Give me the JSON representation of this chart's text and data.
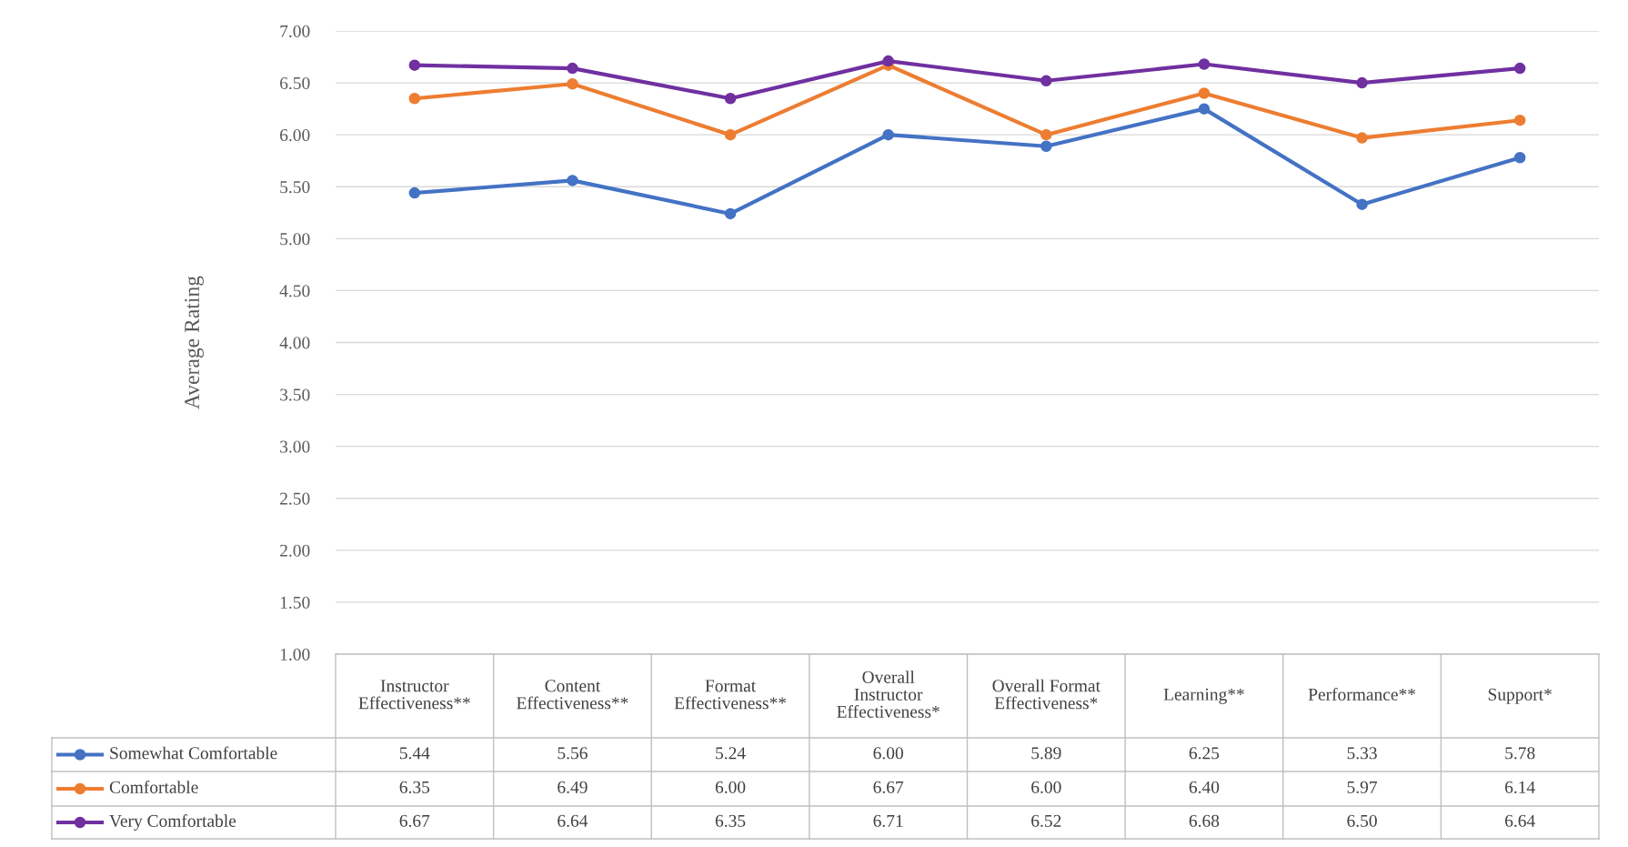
{
  "chart_data": {
    "type": "line",
    "ylabel": "Average Rating",
    "categories": [
      "Instructor\nEffectiveness**",
      "Content\nEffectiveness**",
      "Format\nEffectiveness**",
      "Overall\nInstructor\nEffectiveness*",
      "Overall Format\nEffectiveness*",
      "Learning**",
      "Performance**",
      "Support*"
    ],
    "series": [
      {
        "name": "Somewhat Comfortable",
        "color": "#4472c4",
        "values": [
          5.44,
          5.56,
          5.24,
          6.0,
          5.89,
          6.25,
          5.33,
          5.78
        ],
        "value_labels": [
          "5.44",
          "5.56",
          "5.24",
          "6.00",
          "5.89",
          "6.25",
          "5.33",
          "5.78"
        ]
      },
      {
        "name": "Comfortable",
        "color": "#ed7d31",
        "values": [
          6.35,
          6.49,
          6.0,
          6.67,
          6.0,
          6.4,
          5.97,
          6.14
        ],
        "value_labels": [
          "6.35",
          "6.49",
          "6.00",
          "6.67",
          "6.00",
          "6.40",
          "5.97",
          "6.14"
        ]
      },
      {
        "name": "Very Comfortable",
        "color": "#7030a0",
        "values": [
          6.67,
          6.64,
          6.35,
          6.71,
          6.52,
          6.68,
          6.5,
          6.64
        ],
        "value_labels": [
          "6.67",
          "6.64",
          "6.35",
          "6.71",
          "6.52",
          "6.68",
          "6.50",
          "6.64"
        ]
      }
    ],
    "ylim": [
      1,
      7
    ],
    "yticks": [
      {
        "value": 1,
        "label": "1.00"
      },
      {
        "value": 1.5,
        "label": "1.50"
      },
      {
        "value": 2,
        "label": "2.00"
      },
      {
        "value": 2.5,
        "label": "2.50"
      },
      {
        "value": 3,
        "label": "3.00"
      },
      {
        "value": 3.5,
        "label": "3.50"
      },
      {
        "value": 4,
        "label": "4.00"
      },
      {
        "value": 4.5,
        "label": "4.50"
      },
      {
        "value": 5,
        "label": "5.00"
      },
      {
        "value": 5.5,
        "label": "5.50"
      },
      {
        "value": 6,
        "label": "6.00"
      },
      {
        "value": 6.5,
        "label": "6.50"
      },
      {
        "value": 7,
        "label": "7.00"
      }
    ],
    "grid": "y",
    "marker": "circle",
    "line_style": "solid",
    "legend": "bottom"
  }
}
